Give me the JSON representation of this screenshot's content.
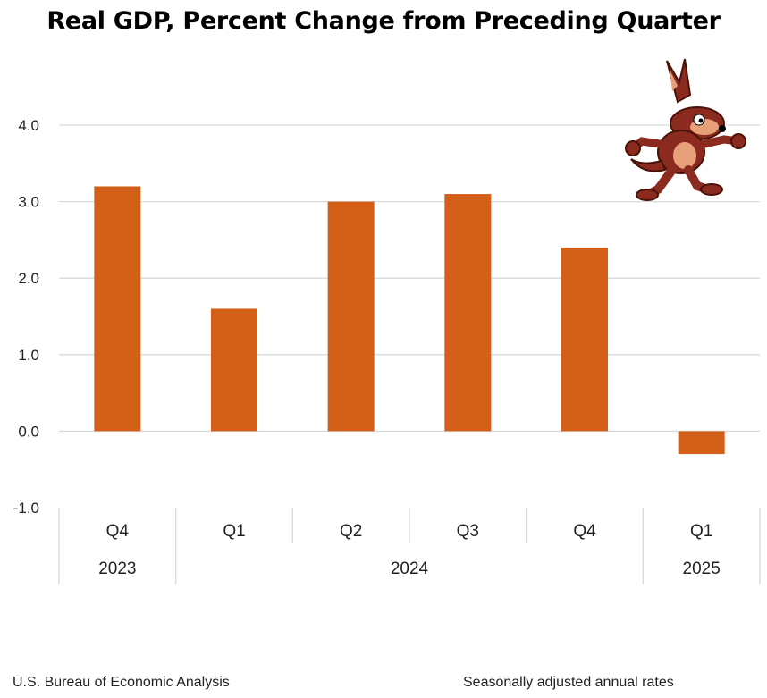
{
  "chart_data": {
    "type": "bar",
    "title": "Real GDP, Percent Change from Preceding Quarter",
    "categories": [
      "Q4",
      "Q1",
      "Q2",
      "Q3",
      "Q4",
      "Q1"
    ],
    "year_groups": [
      {
        "label": "2023",
        "span": 1
      },
      {
        "label": "2024",
        "span": 4
      },
      {
        "label": "2025",
        "span": 1
      }
    ],
    "values": [
      3.2,
      1.6,
      3.0,
      3.1,
      2.4,
      -0.3
    ],
    "ylim": [
      -1.0,
      4.0
    ],
    "yticks": [
      "4.0",
      "3.0",
      "2.0",
      "1.0",
      "0.0",
      "-1.0"
    ],
    "ytick_values": [
      4.0,
      3.0,
      2.0,
      1.0,
      0.0,
      -1.0
    ],
    "xlabel": "",
    "ylabel": "",
    "grid": true,
    "colors": {
      "bar": "#D35F18",
      "grid": "#D9D9D9"
    }
  },
  "footer": {
    "source": "U.S. Bureau of Economic Analysis",
    "note": "Seasonally adjusted annual rates"
  },
  "decoration": {
    "icon": "coyote-cartoon-icon"
  }
}
